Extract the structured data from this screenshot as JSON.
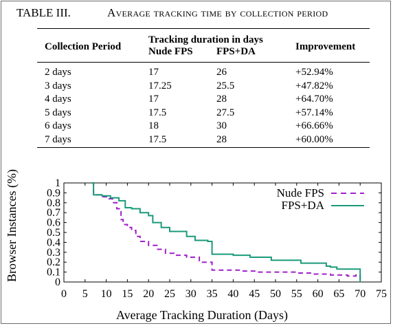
{
  "caption": {
    "label": "TABLE III.",
    "title": "Average tracking time by collection period"
  },
  "table": {
    "headers": {
      "collection_period": "Collection Period",
      "group": "Tracking duration in days",
      "nude_fps": "Nude FPS",
      "fps_da": "FPS+DA",
      "improvement": "Improvement"
    },
    "rows": [
      {
        "period": "2 days",
        "nude": "17",
        "fpsda": "26",
        "improvement": "+52.94%"
      },
      {
        "period": "3 days",
        "nude": "17.25",
        "fpsda": "25.5",
        "improvement": "+47.82%"
      },
      {
        "period": "4 days",
        "nude": "17",
        "fpsda": "28",
        "improvement": "+64.70%"
      },
      {
        "period": "5 days",
        "nude": "17.5",
        "fpsda": "27.5",
        "improvement": "+57.14%"
      },
      {
        "period": "6 days",
        "nude": "18",
        "fpsda": "30",
        "improvement": "+66.66%"
      },
      {
        "period": "7 days",
        "nude": "17.5",
        "fpsda": "28",
        "improvement": "+60.00%"
      }
    ]
  },
  "chart_data": {
    "type": "line",
    "xlabel": "Average Tracking Duration (Days)",
    "ylabel": "Browser Instances (%)",
    "xlim": [
      0,
      75
    ],
    "ylim": [
      0,
      1
    ],
    "xticks": [
      "0",
      "5",
      "10",
      "15",
      "20",
      "25",
      "30",
      "35",
      "40",
      "45",
      "50",
      "55",
      "60",
      "65",
      "70",
      "75"
    ],
    "yticks": [
      "0",
      "0.1",
      "0.2",
      "0.3",
      "0.4",
      "0.5",
      "0.6",
      "0.7",
      "0.8",
      "0.9",
      "1"
    ],
    "legend_position": "top-right",
    "grid": false,
    "series": [
      {
        "name": "Nude FPS",
        "color": "#a020c8",
        "style": "dashed",
        "x": [
          6.5,
          7,
          9,
          10.5,
          11.5,
          12.5,
          13.5,
          14,
          15,
          16,
          17,
          18,
          20,
          22,
          24,
          26,
          29,
          32,
          35,
          42,
          46,
          49,
          55,
          59,
          63,
          67,
          69,
          70
        ],
        "y": [
          1.0,
          0.88,
          0.86,
          0.84,
          0.8,
          0.74,
          0.63,
          0.58,
          0.55,
          0.52,
          0.46,
          0.41,
          0.37,
          0.33,
          0.29,
          0.27,
          0.25,
          0.2,
          0.12,
          0.11,
          0.1,
          0.1,
          0.09,
          0.08,
          0.07,
          0.06,
          0.07,
          0.0
        ]
      },
      {
        "name": "FPS+DA",
        "color": "#1a9a7a",
        "style": "solid",
        "x": [
          6.5,
          7,
          9,
          11,
          13,
          14.5,
          16,
          18,
          20,
          21,
          23,
          25,
          29,
          31,
          34,
          35,
          40,
          44,
          49,
          56,
          62,
          63,
          64.5,
          70
        ],
        "y": [
          1.0,
          0.88,
          0.87,
          0.85,
          0.82,
          0.75,
          0.74,
          0.7,
          0.67,
          0.6,
          0.55,
          0.51,
          0.46,
          0.42,
          0.41,
          0.28,
          0.27,
          0.25,
          0.22,
          0.19,
          0.16,
          0.15,
          0.13,
          0.0
        ]
      }
    ]
  }
}
